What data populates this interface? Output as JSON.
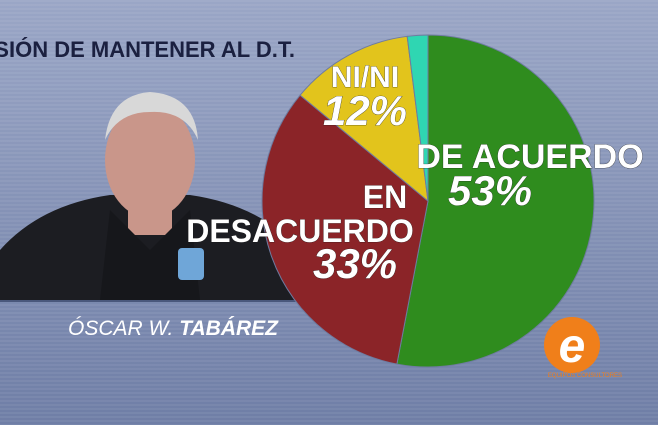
{
  "chart_data": {
    "type": "pie",
    "title": "DECISIÓN DE MANTENER AL D.T.",
    "categories": [
      "DE ACUERDO",
      "EN DESACUERDO",
      "NI/NI",
      null
    ],
    "values": [
      53,
      33,
      12,
      2
    ],
    "value_labels": [
      "53%",
      "33%",
      "12%",
      null
    ],
    "colors": [
      "#2f8c1e",
      "#8b2428",
      "#e2c41c",
      "#2fd6b2"
    ]
  },
  "caption": {
    "first": "ÓSCAR W.",
    "last": "TABÁREZ"
  },
  "logo": {
    "mark": "e",
    "text": "EQUIPOS CONSULTORES"
  }
}
